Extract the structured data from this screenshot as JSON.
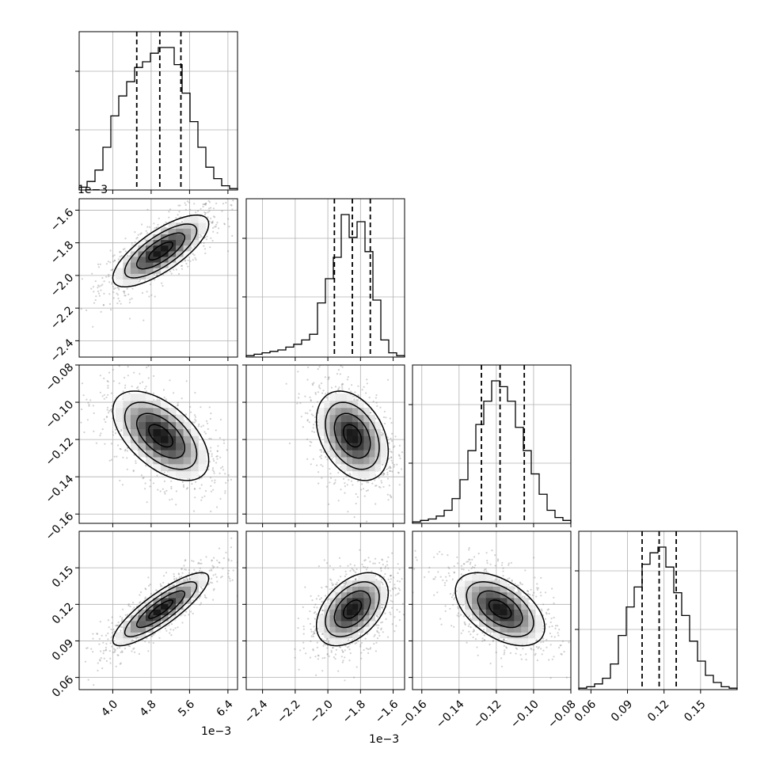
{
  "chart_data": {
    "type": "corner",
    "grid": true,
    "colors": {
      "hist": "#000000",
      "quantile": "#000000",
      "scatter": "#7a7a7a",
      "density_dark": "#000000",
      "contour": "#000000"
    },
    "params": [
      {
        "scale_label": "1e−3",
        "range": [
          3.3,
          6.6
        ],
        "ticks": [
          4.0,
          4.8,
          5.6,
          6.4
        ],
        "tick_labels": [
          "4.0",
          "4.8",
          "5.6",
          "6.4"
        ],
        "quantiles": [
          4.5,
          4.98,
          5.42
        ],
        "mean": 5.0,
        "sd": 0.5
      },
      {
        "scale_label": "1e−3",
        "range": [
          -2.5,
          -1.53
        ],
        "ticks": [
          -2.4,
          -2.2,
          -2.0,
          -1.8,
          -1.6
        ],
        "tick_labels": [
          "−2.4",
          "−2.2",
          "−2.0",
          "−1.8",
          "−1.6"
        ],
        "quantiles": [
          -1.96,
          -1.85,
          -1.74
        ],
        "mean": -1.85,
        "sd": 0.11
      },
      {
        "scale_label": "",
        "range": [
          -0.165,
          -0.08
        ],
        "ticks": [
          -0.16,
          -0.14,
          -0.12,
          -0.1,
          -0.08
        ],
        "tick_labels": [
          "−0.16",
          "−0.14",
          "−0.12",
          "−0.10",
          "−0.08"
        ],
        "quantiles": [
          -0.128,
          -0.118,
          -0.105
        ],
        "mean": -0.118,
        "sd": 0.012
      },
      {
        "scale_label": "",
        "range": [
          0.05,
          0.18
        ],
        "ticks": [
          0.06,
          0.09,
          0.12,
          0.15
        ],
        "tick_labels": [
          "0.06",
          "0.09",
          "0.12",
          "0.15"
        ],
        "quantiles": [
          0.102,
          0.116,
          0.13
        ],
        "mean": 0.116,
        "sd": 0.015
      }
    ],
    "histograms": [
      {
        "bins": 20,
        "counts": [
          2,
          6,
          14,
          30,
          52,
          66,
          76,
          86,
          90,
          96,
          100,
          100,
          88,
          68,
          48,
          30,
          16,
          8,
          3,
          1
        ]
      },
      {
        "bins": 20,
        "counts": [
          1,
          2,
          3,
          4,
          5,
          7,
          9,
          12,
          16,
          38,
          55,
          70,
          100,
          84,
          95,
          74,
          40,
          12,
          3,
          1
        ]
      },
      {
        "bins": 20,
        "counts": [
          1,
          2,
          3,
          5,
          9,
          17,
          30,
          50,
          68,
          84,
          98,
          94,
          84,
          66,
          50,
          34,
          20,
          9,
          4,
          2
        ]
      },
      {
        "bins": 20,
        "counts": [
          1,
          2,
          4,
          8,
          18,
          38,
          58,
          72,
          88,
          96,
          100,
          86,
          68,
          52,
          34,
          20,
          10,
          5,
          2,
          1
        ]
      }
    ],
    "correlations": [
      {
        "row": 1,
        "col": 0,
        "rho": 0.75
      },
      {
        "row": 2,
        "col": 0,
        "rho": -0.55
      },
      {
        "row": 2,
        "col": 1,
        "rho": -0.35
      },
      {
        "row": 3,
        "col": 0,
        "rho": 0.85
      },
      {
        "row": 3,
        "col": 1,
        "rho": 0.45
      },
      {
        "row": 3,
        "col": 2,
        "rho": -0.5
      }
    ]
  }
}
